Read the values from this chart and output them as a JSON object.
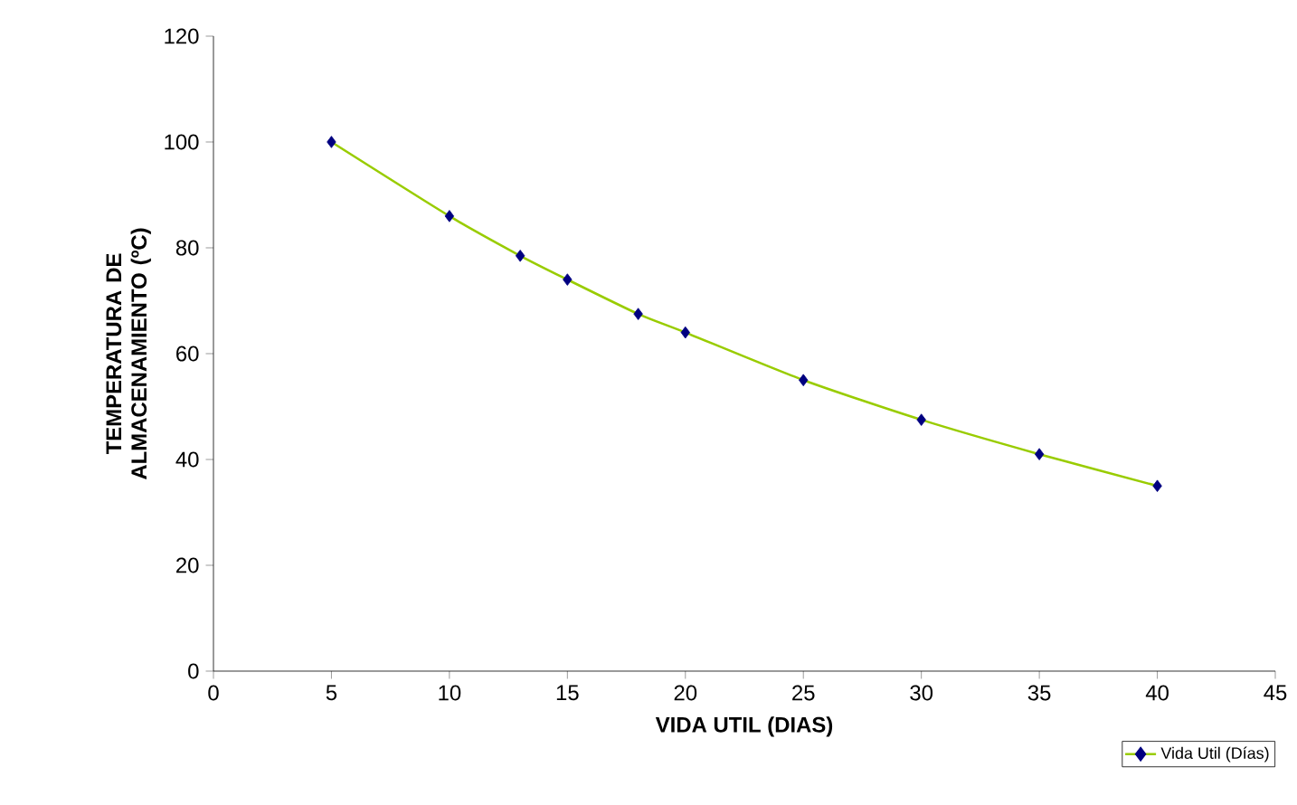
{
  "chart_data": {
    "type": "line",
    "xlabel": "VIDA UTIL (DIAS)",
    "ylabel": "TEMPERATURA DE ALMACENAMIENTO (ºC)",
    "x": [
      5,
      10,
      13,
      15,
      18,
      20,
      25,
      30,
      35,
      40
    ],
    "series": [
      {
        "name": "Vida Util (Días)",
        "color": "#99cc00",
        "colors": [
          "#000080",
          "#000080",
          "#000080",
          "#000080",
          "#000080",
          "#000080",
          "#000080",
          "#000080",
          "#000080",
          "#000080"
        ],
        "values": [
          100,
          86,
          78.5,
          74,
          67.5,
          64,
          55,
          47.5,
          41,
          35
        ]
      }
    ],
    "xlim": [
      0,
      45
    ],
    "xticks": [
      0,
      5,
      10,
      15,
      20,
      25,
      30,
      35,
      40,
      45
    ],
    "ylim": [
      0,
      120
    ],
    "yticks": [
      0,
      20,
      40,
      60,
      80,
      100,
      120
    ],
    "marker": "diamond",
    "line_style": "solid",
    "grid": false,
    "legend": "bottom right"
  }
}
